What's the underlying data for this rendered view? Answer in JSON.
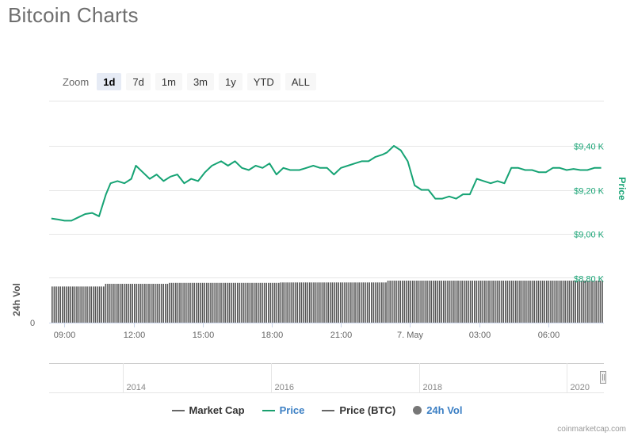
{
  "page": {
    "title": "Bitcoin Charts"
  },
  "zoom": {
    "label": "Zoom",
    "buttons": [
      "1d",
      "7d",
      "1m",
      "3m",
      "1y",
      "YTD",
      "ALL"
    ],
    "active": "1d"
  },
  "legend": {
    "items": [
      {
        "label": "Market Cap",
        "color": "#666666",
        "shape": "line"
      },
      {
        "label": "Price",
        "color": "#1a9f6e",
        "shape": "line"
      },
      {
        "label": "Price (BTC)",
        "color": "#666666",
        "shape": "line"
      },
      {
        "label": "24h Vol",
        "color": "#777777",
        "shape": "dot"
      }
    ]
  },
  "credit": "coinmarketcap.com",
  "colors": {
    "price": "#16a374",
    "axis_text": "#666666",
    "grid": "#e6e6e6",
    "volume": "#555555"
  },
  "chart_data": {
    "type": "line",
    "price_axis": {
      "label": "Price",
      "ticks": [
        {
          "value": 9400,
          "label": "$9,40 K"
        },
        {
          "value": 9200,
          "label": "$9,20 K"
        },
        {
          "value": 9000,
          "label": "$9,00 K"
        },
        {
          "value": 8800,
          "label": "$8,80 K"
        }
      ],
      "ylim": [
        8800,
        9600
      ]
    },
    "volume_axis": {
      "label": "24h Vol",
      "ticks": [
        {
          "value": 0,
          "label": "0"
        }
      ]
    },
    "x_axis": {
      "xlim": [
        8.333,
        32.417
      ],
      "ticks": [
        {
          "value": 9,
          "label": "09:00"
        },
        {
          "value": 12,
          "label": "12:00"
        },
        {
          "value": 15,
          "label": "15:00"
        },
        {
          "value": 18,
          "label": "18:00"
        },
        {
          "value": 21,
          "label": "21:00"
        },
        {
          "value": 24,
          "label": "7. May"
        },
        {
          "value": 27,
          "label": "03:00"
        },
        {
          "value": 30,
          "label": "06:00"
        }
      ]
    },
    "series": [
      {
        "name": "Price",
        "x": [
          8.43,
          8.75,
          9.0,
          9.3,
          9.6,
          9.9,
          10.2,
          10.5,
          10.8,
          11.0,
          11.3,
          11.6,
          11.9,
          12.1,
          12.4,
          12.7,
          13.0,
          13.3,
          13.6,
          13.9,
          14.2,
          14.5,
          14.8,
          15.1,
          15.4,
          15.8,
          16.1,
          16.4,
          16.7,
          17.0,
          17.3,
          17.6,
          17.9,
          18.2,
          18.5,
          18.8,
          19.2,
          19.5,
          19.8,
          20.1,
          20.4,
          20.7,
          21.0,
          21.3,
          21.6,
          21.9,
          22.2,
          22.5,
          22.8,
          23.0,
          23.3,
          23.6,
          23.9,
          24.2,
          24.5,
          24.8,
          25.1,
          25.4,
          25.7,
          26.0,
          26.3,
          26.6,
          26.9,
          27.2,
          27.5,
          27.8,
          28.1,
          28.4,
          28.7,
          29.0,
          29.3,
          29.6,
          29.9,
          30.2,
          30.5,
          30.8,
          31.1,
          31.4,
          31.7,
          32.0,
          32.3
        ],
        "y": [
          9070,
          9065,
          9060,
          9060,
          9075,
          9090,
          9095,
          9080,
          9180,
          9230,
          9240,
          9230,
          9250,
          9310,
          9280,
          9250,
          9270,
          9240,
          9260,
          9270,
          9230,
          9250,
          9240,
          9280,
          9310,
          9330,
          9310,
          9330,
          9300,
          9290,
          9310,
          9300,
          9320,
          9270,
          9300,
          9290,
          9290,
          9300,
          9310,
          9300,
          9300,
          9270,
          9300,
          9310,
          9320,
          9330,
          9330,
          9350,
          9360,
          9370,
          9400,
          9380,
          9330,
          9220,
          9200,
          9200,
          9160,
          9160,
          9170,
          9160,
          9180,
          9180,
          9250,
          9240,
          9230,
          9240,
          9230,
          9300,
          9300,
          9290,
          9290,
          9280,
          9280,
          9300,
          9300,
          9290,
          9295,
          9290,
          9290,
          9300,
          9300
        ]
      },
      {
        "name": "24h Vol",
        "levels": [
          {
            "from": 8.4,
            "to": 10.7,
            "rel": 0.8
          },
          {
            "from": 10.7,
            "to": 13.5,
            "rel": 0.86
          },
          {
            "from": 13.5,
            "to": 18.3,
            "rel": 0.88
          },
          {
            "from": 18.3,
            "to": 23.0,
            "rel": 0.89
          },
          {
            "from": 23.0,
            "to": 32.4,
            "rel": 0.93
          }
        ]
      }
    ],
    "navigator": {
      "xlim": [
        2013.0,
        2020.5
      ],
      "ticks": [
        {
          "value": 2014,
          "label": "2014"
        },
        {
          "value": 2016,
          "label": "2016"
        },
        {
          "value": 2018,
          "label": "2018"
        },
        {
          "value": 2020,
          "label": "2020"
        }
      ]
    }
  }
}
